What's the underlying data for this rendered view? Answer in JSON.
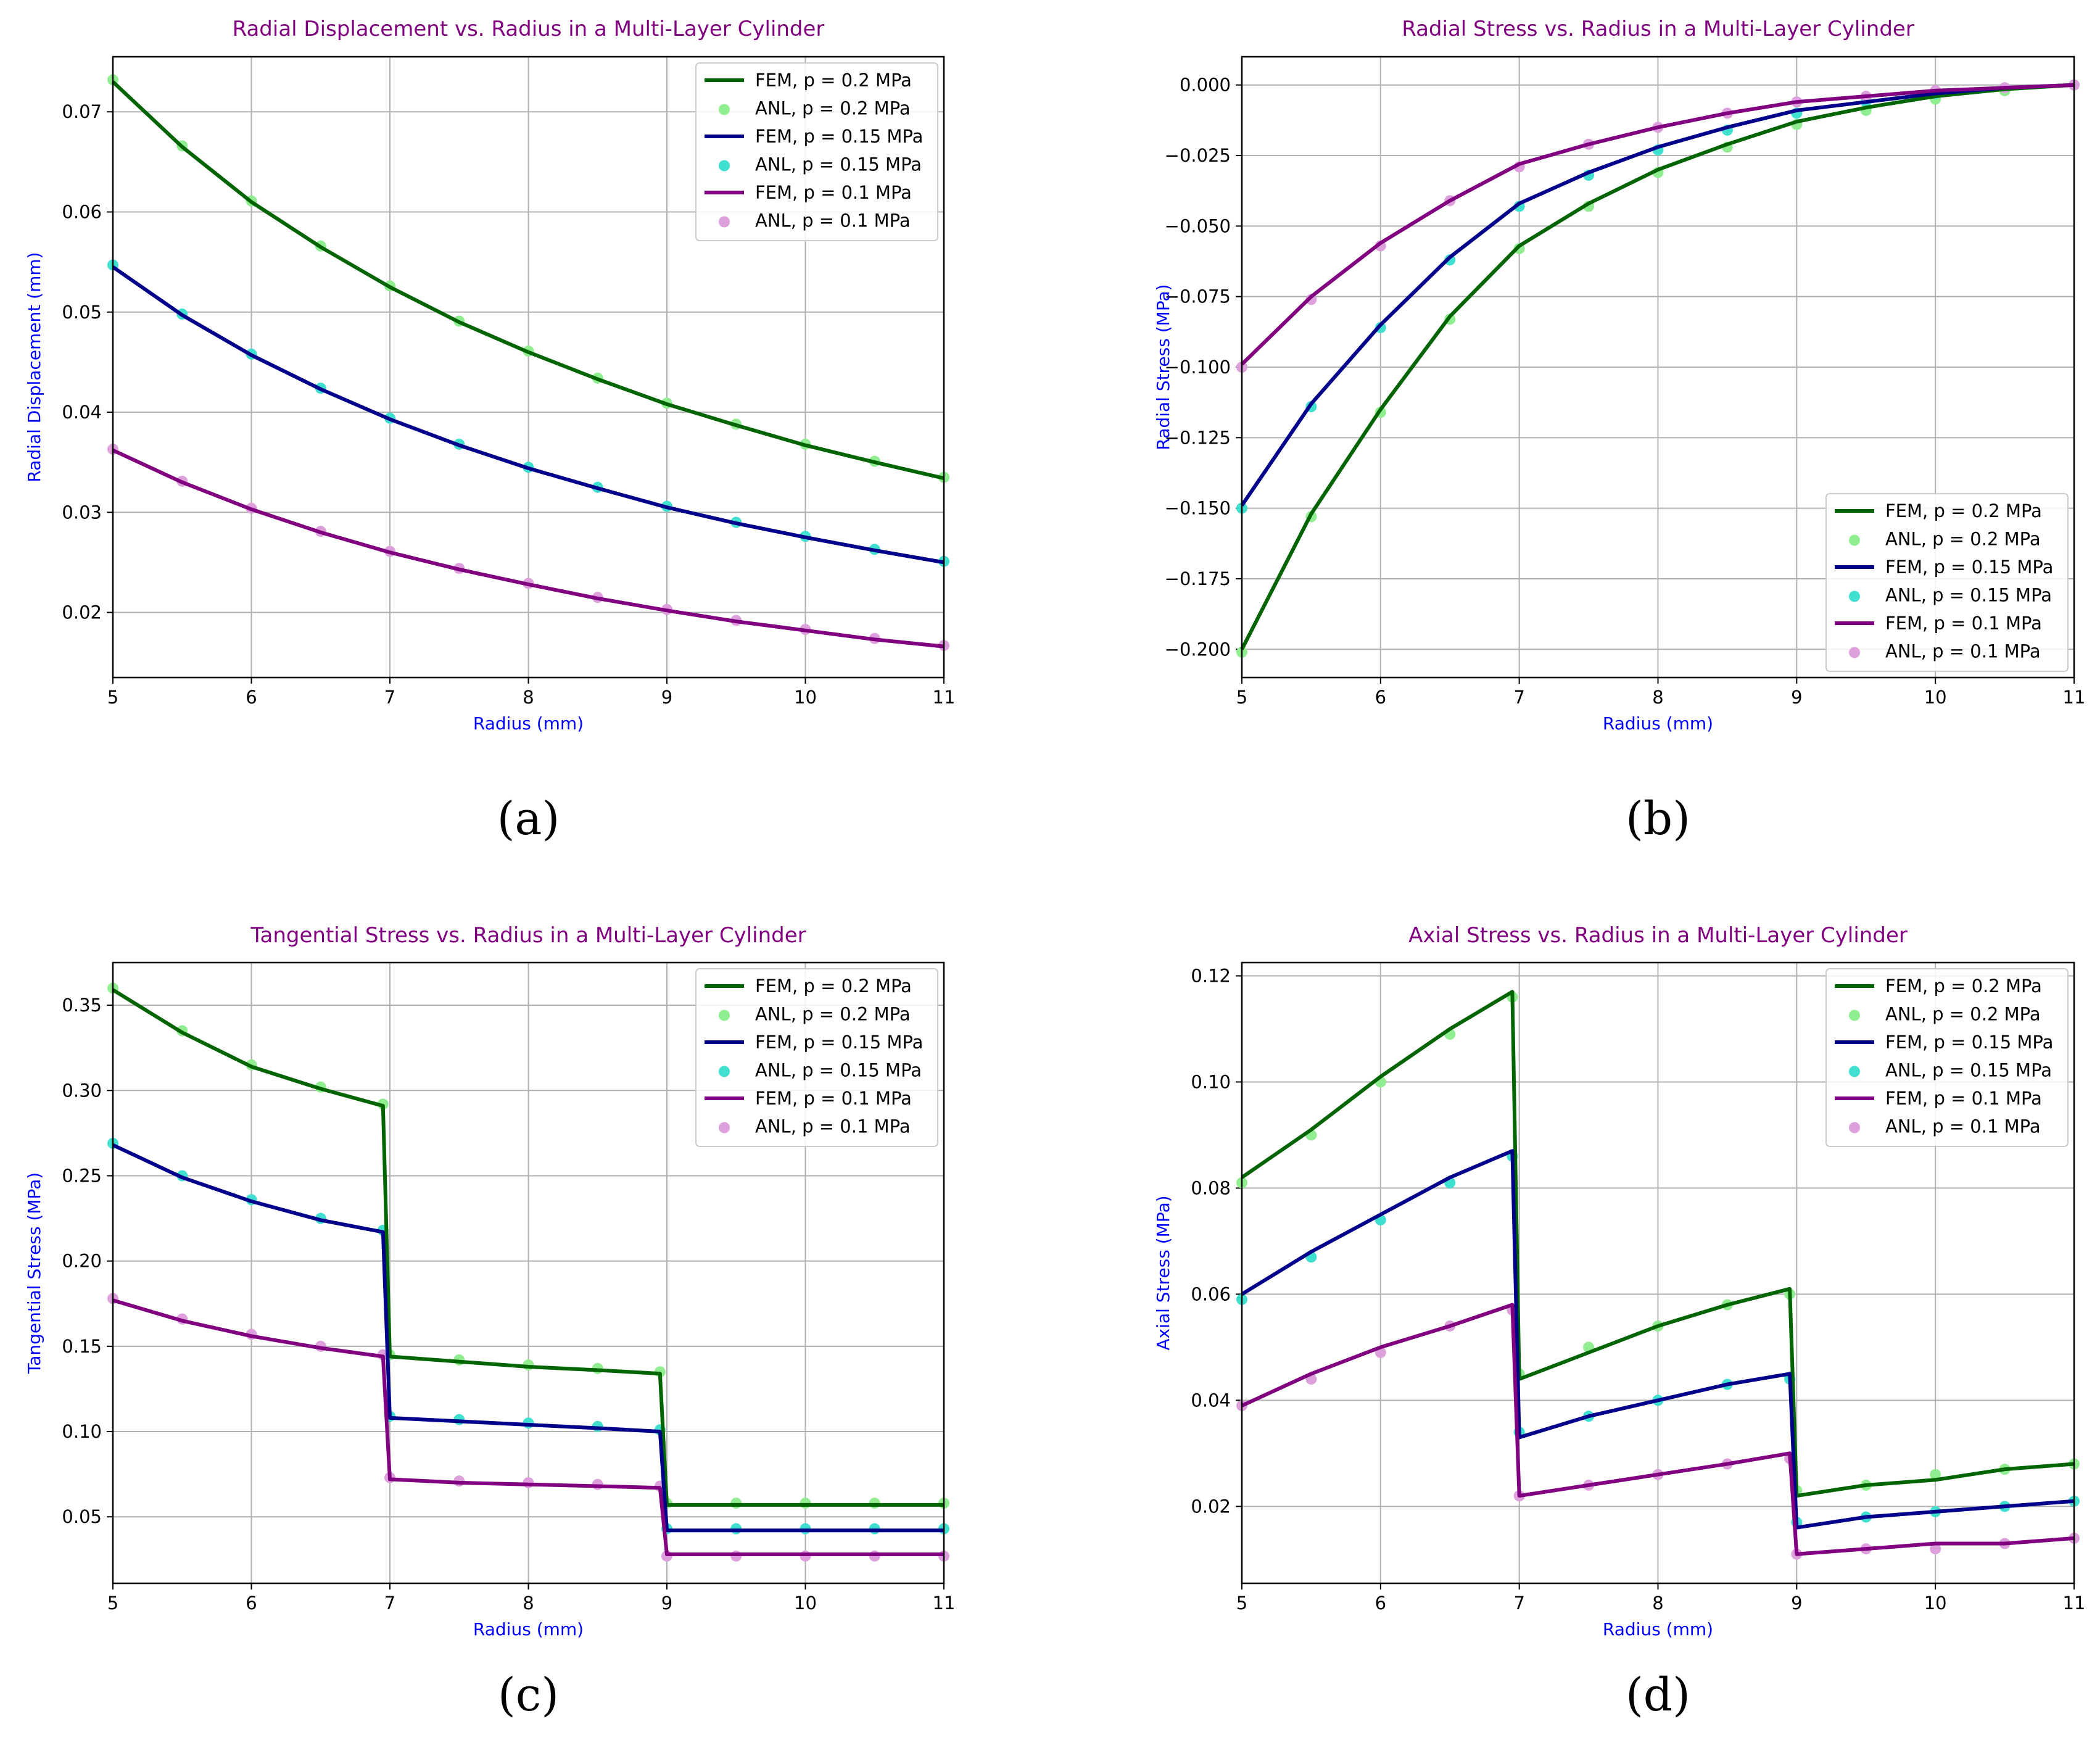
{
  "colors": {
    "fem_0.2": "#006400",
    "anl_0.2": "#90ee90",
    "fem_0.15": "#00008b",
    "anl_0.15": "#40e0d0",
    "fem_0.1": "#800080",
    "anl_0.1": "#dda0dd",
    "title": "#800080",
    "axis_label": "#0000ff",
    "grid": "#b0b0b0"
  },
  "chart_data": [
    {
      "id": "a",
      "type": "line",
      "caption": "(a)",
      "title": "Radial Displacement vs. Radius in a Multi-Layer Cylinder",
      "xlabel": "Radius (mm)",
      "ylabel": "Radial Displacement (mm)",
      "xlim": [
        5,
        11
      ],
      "ylim": [
        0.0135,
        0.0755
      ],
      "xticks": [
        5,
        6,
        7,
        8,
        9,
        10,
        11
      ],
      "yticks": [
        0.02,
        0.03,
        0.04,
        0.05,
        0.06,
        0.07
      ],
      "ytick_labels": [
        "0.02",
        "0.03",
        "0.04",
        "0.05",
        "0.06",
        "0.07"
      ],
      "grid": true,
      "legend": "upper right",
      "x": [
        5,
        5.5,
        6,
        6.5,
        7,
        7.5,
        8,
        8.5,
        9,
        9.5,
        10,
        10.5,
        11
      ],
      "series": [
        {
          "name": "FEM, p = 0.2 MPa",
          "kind": "line",
          "color_key": "fem_0.2",
          "values": [
            0.073,
            0.0665,
            0.061,
            0.0565,
            0.0525,
            0.049,
            0.046,
            0.0433,
            0.0408,
            0.0387,
            0.0367,
            0.035,
            0.0334
          ]
        },
        {
          "name": "ANL, p = 0.2 MPa",
          "kind": "scatter",
          "color_key": "anl_0.2",
          "values": [
            0.0732,
            0.0666,
            0.0611,
            0.0566,
            0.0526,
            0.0491,
            0.0461,
            0.0434,
            0.0409,
            0.0388,
            0.0368,
            0.0351,
            0.0335
          ]
        },
        {
          "name": "FEM, p = 0.15 MPa",
          "kind": "line",
          "color_key": "fem_0.15",
          "values": [
            0.0545,
            0.0497,
            0.0457,
            0.0423,
            0.0393,
            0.0367,
            0.0344,
            0.0324,
            0.0305,
            0.0289,
            0.0275,
            0.0262,
            0.025
          ]
        },
        {
          "name": "ANL, p = 0.15 MPa",
          "kind": "scatter",
          "color_key": "anl_0.15",
          "values": [
            0.0547,
            0.0498,
            0.0458,
            0.0424,
            0.0394,
            0.0368,
            0.0345,
            0.0325,
            0.0306,
            0.029,
            0.0276,
            0.0263,
            0.0251
          ]
        },
        {
          "name": "FEM, p = 0.1 MPa",
          "kind": "line",
          "color_key": "fem_0.1",
          "values": [
            0.0362,
            0.033,
            0.0303,
            0.028,
            0.026,
            0.0243,
            0.0228,
            0.0214,
            0.0202,
            0.0191,
            0.0182,
            0.0173,
            0.0166
          ]
        },
        {
          "name": "ANL, p = 0.1 MPa",
          "kind": "scatter",
          "color_key": "anl_0.1",
          "values": [
            0.0363,
            0.0331,
            0.0304,
            0.0281,
            0.0261,
            0.0244,
            0.0229,
            0.0215,
            0.0203,
            0.0192,
            0.0183,
            0.0174,
            0.0167
          ]
        }
      ]
    },
    {
      "id": "b",
      "type": "line",
      "caption": "(b)",
      "title": "Radial Stress vs. Radius in a Multi-Layer Cylinder",
      "xlabel": "Radius (mm)",
      "ylabel": "Radial Stress (MPa)",
      "xlim": [
        5,
        11
      ],
      "ylim": [
        -0.21,
        0.01
      ],
      "xticks": [
        5,
        6,
        7,
        8,
        9,
        10,
        11
      ],
      "yticks": [
        -0.2,
        -0.175,
        -0.15,
        -0.125,
        -0.1,
        -0.075,
        -0.05,
        -0.025,
        0
      ],
      "ytick_labels": [
        "−0.200",
        "−0.175",
        "−0.150",
        "−0.125",
        "−0.100",
        "−0.075",
        "−0.050",
        "−0.025",
        "0.000"
      ],
      "grid": true,
      "legend": "lower right",
      "x": [
        5,
        5.5,
        6,
        6.5,
        7,
        7.5,
        8,
        8.5,
        9,
        9.5,
        10,
        10.5,
        11
      ],
      "series": [
        {
          "name": "FEM, p = 0.2 MPa",
          "kind": "line",
          "color_key": "fem_0.2",
          "values": [
            -0.2,
            -0.152,
            -0.115,
            -0.082,
            -0.057,
            -0.042,
            -0.03,
            -0.021,
            -0.013,
            -0.008,
            -0.004,
            -0.0015,
            0.0
          ]
        },
        {
          "name": "ANL, p = 0.2 MPa",
          "kind": "scatter",
          "color_key": "anl_0.2",
          "values": [
            -0.201,
            -0.153,
            -0.116,
            -0.083,
            -0.058,
            -0.043,
            -0.031,
            -0.022,
            -0.014,
            -0.009,
            -0.005,
            -0.002,
            0.0
          ]
        },
        {
          "name": "FEM, p = 0.15 MPa",
          "kind": "line",
          "color_key": "fem_0.15",
          "values": [
            -0.149,
            -0.113,
            -0.085,
            -0.061,
            -0.042,
            -0.031,
            -0.022,
            -0.015,
            -0.009,
            -0.006,
            -0.003,
            -0.001,
            0.0
          ]
        },
        {
          "name": "ANL, p = 0.15 MPa",
          "kind": "scatter",
          "color_key": "anl_0.15",
          "values": [
            -0.15,
            -0.114,
            -0.086,
            -0.062,
            -0.043,
            -0.032,
            -0.023,
            -0.016,
            -0.01,
            -0.006,
            -0.003,
            -0.001,
            0.0
          ]
        },
        {
          "name": "FEM, p = 0.1 MPa",
          "kind": "line",
          "color_key": "fem_0.1",
          "values": [
            -0.099,
            -0.075,
            -0.056,
            -0.041,
            -0.028,
            -0.021,
            -0.015,
            -0.01,
            -0.006,
            -0.004,
            -0.002,
            -0.001,
            0.0
          ]
        },
        {
          "name": "ANL, p = 0.1 MPa",
          "kind": "scatter",
          "color_key": "anl_0.1",
          "values": [
            -0.1,
            -0.076,
            -0.057,
            -0.041,
            -0.029,
            -0.021,
            -0.015,
            -0.01,
            -0.006,
            -0.004,
            -0.002,
            -0.001,
            0.0
          ]
        }
      ]
    },
    {
      "id": "c",
      "type": "line",
      "caption": "(c)",
      "title": "Tangential Stress vs. Radius in a Multi-Layer Cylinder",
      "xlabel": "Radius (mm)",
      "ylabel": "Tangential Stress (MPa)",
      "xlim": [
        5,
        11
      ],
      "ylim": [
        0.011,
        0.375
      ],
      "xticks": [
        5,
        6,
        7,
        8,
        9,
        10,
        11
      ],
      "yticks": [
        0.05,
        0.1,
        0.15,
        0.2,
        0.25,
        0.3,
        0.35
      ],
      "ytick_labels": [
        "0.05",
        "0.10",
        "0.15",
        "0.20",
        "0.25",
        "0.30",
        "0.35"
      ],
      "grid": true,
      "legend": "upper right",
      "x": [
        5,
        5.5,
        6,
        6.5,
        6.95,
        7.0,
        7.5,
        8,
        8.5,
        8.95,
        9.0,
        9.5,
        10,
        10.5,
        11
      ],
      "series": [
        {
          "name": "FEM, p = 0.2 MPa",
          "kind": "line",
          "color_key": "fem_0.2",
          "values": [
            0.359,
            0.334,
            0.314,
            0.301,
            0.291,
            0.144,
            0.141,
            0.138,
            0.136,
            0.134,
            0.057,
            0.057,
            0.057,
            0.057,
            0.057
          ]
        },
        {
          "name": "ANL, p = 0.2 MPa",
          "kind": "scatter",
          "color_key": "anl_0.2",
          "values": [
            0.36,
            0.335,
            0.315,
            0.302,
            0.292,
            0.145,
            0.142,
            0.139,
            0.137,
            0.135,
            0.058,
            0.058,
            0.058,
            0.058,
            0.058
          ]
        },
        {
          "name": "FEM, p = 0.15 MPa",
          "kind": "line",
          "color_key": "fem_0.15",
          "values": [
            0.268,
            0.249,
            0.235,
            0.224,
            0.217,
            0.108,
            0.106,
            0.104,
            0.102,
            0.1,
            0.042,
            0.042,
            0.042,
            0.042,
            0.042
          ]
        },
        {
          "name": "ANL, p = 0.15 MPa",
          "kind": "scatter",
          "color_key": "anl_0.15",
          "values": [
            0.269,
            0.25,
            0.236,
            0.225,
            0.218,
            0.109,
            0.107,
            0.105,
            0.103,
            0.101,
            0.043,
            0.043,
            0.043,
            0.043,
            0.043
          ]
        },
        {
          "name": "FEM, p = 0.1 MPa",
          "kind": "line",
          "color_key": "fem_0.1",
          "values": [
            0.177,
            0.165,
            0.156,
            0.149,
            0.144,
            0.072,
            0.07,
            0.069,
            0.068,
            0.067,
            0.028,
            0.028,
            0.028,
            0.028,
            0.028
          ]
        },
        {
          "name": "ANL, p = 0.1 MPa",
          "kind": "scatter",
          "color_key": "anl_0.1",
          "values": [
            0.178,
            0.166,
            0.157,
            0.15,
            0.145,
            0.073,
            0.071,
            0.07,
            0.069,
            0.068,
            0.027,
            0.027,
            0.027,
            0.027,
            0.027
          ]
        }
      ]
    },
    {
      "id": "d",
      "type": "line",
      "caption": "(d)",
      "title": "Axial Stress vs. Radius in a Multi-Layer Cylinder",
      "xlabel": "Radius (mm)",
      "ylabel": "Axial Stress (MPa)",
      "xlim": [
        5,
        11
      ],
      "ylim": [
        0.0055,
        0.1225
      ],
      "xticks": [
        5,
        6,
        7,
        8,
        9,
        10,
        11
      ],
      "yticks": [
        0.02,
        0.04,
        0.06,
        0.08,
        0.1,
        0.12
      ],
      "ytick_labels": [
        "0.02",
        "0.04",
        "0.06",
        "0.08",
        "0.10",
        "0.12"
      ],
      "grid": true,
      "legend": "upper right",
      "x": [
        5,
        5.5,
        6,
        6.5,
        6.95,
        7.0,
        7.5,
        8,
        8.5,
        8.95,
        9.0,
        9.5,
        10,
        10.5,
        11
      ],
      "series": [
        {
          "name": "FEM, p = 0.2 MPa",
          "kind": "line",
          "color_key": "fem_0.2",
          "values": [
            0.082,
            0.091,
            0.101,
            0.11,
            0.117,
            0.044,
            0.049,
            0.054,
            0.058,
            0.061,
            0.022,
            0.024,
            0.025,
            0.027,
            0.028
          ]
        },
        {
          "name": "ANL, p = 0.2 MPa",
          "kind": "scatter",
          "color_key": "anl_0.2",
          "values": [
            0.081,
            0.09,
            0.1,
            0.109,
            0.116,
            0.045,
            0.05,
            0.054,
            0.058,
            0.06,
            0.023,
            0.024,
            0.026,
            0.027,
            0.028
          ]
        },
        {
          "name": "FEM, p = 0.15 MPa",
          "kind": "line",
          "color_key": "fem_0.15",
          "values": [
            0.06,
            0.068,
            0.075,
            0.082,
            0.087,
            0.033,
            0.037,
            0.04,
            0.043,
            0.045,
            0.016,
            0.018,
            0.019,
            0.02,
            0.021
          ]
        },
        {
          "name": "ANL, p = 0.15 MPa",
          "kind": "scatter",
          "color_key": "anl_0.15",
          "values": [
            0.059,
            0.067,
            0.074,
            0.081,
            0.086,
            0.034,
            0.037,
            0.04,
            0.043,
            0.044,
            0.017,
            0.018,
            0.019,
            0.02,
            0.021
          ]
        },
        {
          "name": "FEM, p = 0.1 MPa",
          "kind": "line",
          "color_key": "fem_0.1",
          "values": [
            0.039,
            0.045,
            0.05,
            0.054,
            0.058,
            0.022,
            0.024,
            0.026,
            0.028,
            0.03,
            0.011,
            0.012,
            0.013,
            0.013,
            0.014
          ]
        },
        {
          "name": "ANL, p = 0.1 MPa",
          "kind": "scatter",
          "color_key": "anl_0.1",
          "values": [
            0.039,
            0.044,
            0.049,
            0.054,
            0.057,
            0.022,
            0.024,
            0.026,
            0.028,
            0.029,
            0.011,
            0.012,
            0.012,
            0.013,
            0.014
          ]
        }
      ]
    }
  ]
}
